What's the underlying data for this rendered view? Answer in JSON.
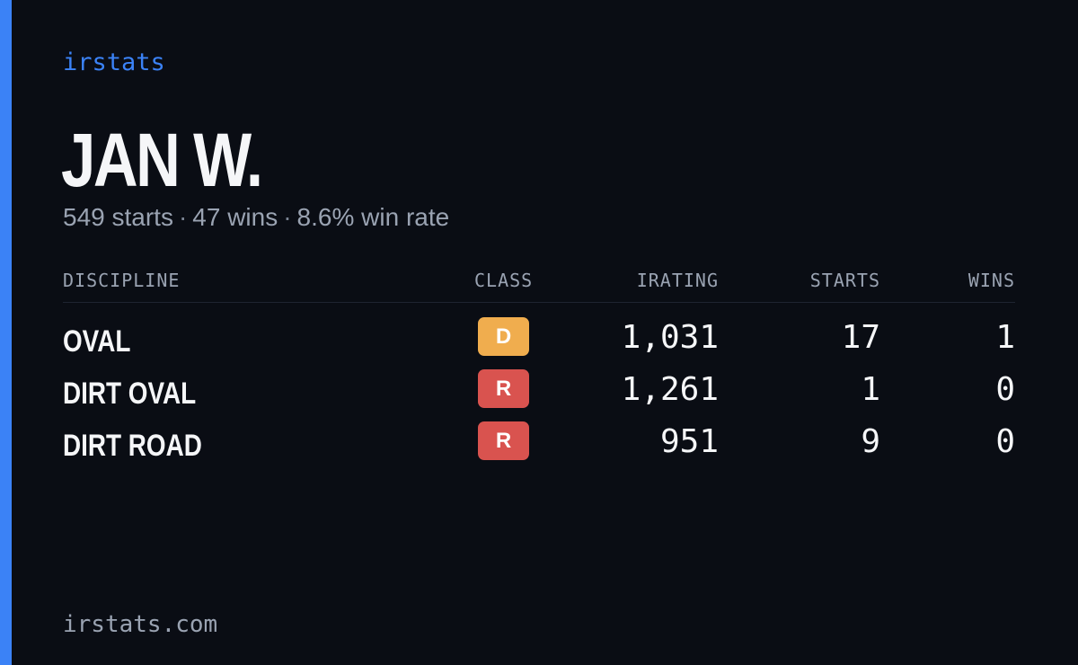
{
  "brand": "irstats",
  "driver": {
    "name": "JAN W.",
    "starts": "549 starts",
    "wins": "47 wins",
    "win_rate": "8.6% win rate",
    "separator": "·"
  },
  "table": {
    "headers": {
      "discipline": "DISCIPLINE",
      "class": "CLASS",
      "irating": "IRATING",
      "starts": "STARTS",
      "wins": "WINS"
    },
    "rows": [
      {
        "discipline": "OVAL",
        "class": "D",
        "class_color": "#f0ad4e",
        "irating": "1,031",
        "starts": "17",
        "wins": "1"
      },
      {
        "discipline": "DIRT OVAL",
        "class": "R",
        "class_color": "#d9534f",
        "irating": "1,261",
        "starts": "1",
        "wins": "0"
      },
      {
        "discipline": "DIRT ROAD",
        "class": "R",
        "class_color": "#d9534f",
        "irating": "951",
        "starts": "9",
        "wins": "0"
      }
    ]
  },
  "footer": "irstats.com",
  "colors": {
    "accent": "#3b82f6",
    "background": "#0a0d14",
    "muted_text": "#9aa3b2"
  }
}
